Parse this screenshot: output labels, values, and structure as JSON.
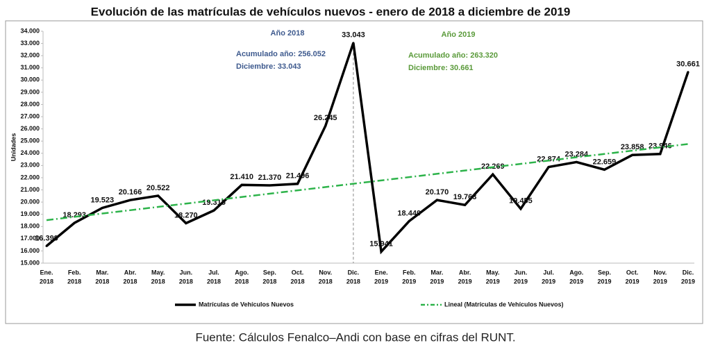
{
  "chart_data": {
    "type": "line",
    "title": "Evolución de las matrículas de vehículos nuevos - enero de 2018 a diciembre de 2019",
    "y_label": "Unidades",
    "source": "Fuente: Cálculos Fenalco–Andi con base en cifras del RUNT.",
    "categories": [
      [
        "Ene.",
        "2018"
      ],
      [
        "Feb.",
        "2018"
      ],
      [
        "Mar.",
        "2018"
      ],
      [
        "Abr.",
        "2018"
      ],
      [
        "May.",
        "2018"
      ],
      [
        "Jun.",
        "2018"
      ],
      [
        "Jul.",
        "2018"
      ],
      [
        "Ago.",
        "2018"
      ],
      [
        "Sep.",
        "2018"
      ],
      [
        "Oct.",
        "2018"
      ],
      [
        "Nov.",
        "2018"
      ],
      [
        "Dic.",
        "2018"
      ],
      [
        "Ene.",
        "2019"
      ],
      [
        "Feb.",
        "2019"
      ],
      [
        "Mar.",
        "2019"
      ],
      [
        "Abr.",
        "2019"
      ],
      [
        "May.",
        "2019"
      ],
      [
        "Jun.",
        "2019"
      ],
      [
        "Jul.",
        "2019"
      ],
      [
        "Ago.",
        "2019"
      ],
      [
        "Sep.",
        "2019"
      ],
      [
        "Oct.",
        "2019"
      ],
      [
        "Nov.",
        "2019"
      ],
      [
        "Dic.",
        "2019"
      ]
    ],
    "series": [
      {
        "name": "Matrículas de Vehículos Nuevos",
        "color": "#000000",
        "values": [
          16399,
          18293,
          19523,
          20166,
          20522,
          18270,
          19315,
          21410,
          21370,
          21496,
          26245,
          33043,
          15941,
          18440,
          20170,
          19763,
          22269,
          19455,
          22874,
          23284,
          22659,
          23858,
          23946,
          30661
        ],
        "value_labels": [
          "16.399",
          "18.293",
          "19.523",
          "20.166",
          "20.522",
          "18.270",
          "19.315",
          "21.410",
          "21.370",
          "21.496",
          "26.245",
          "33.043",
          "15.941",
          "18.440",
          "20.170",
          "19.763",
          "22.269",
          "19.455",
          "22.874",
          "23.284",
          "22.659",
          "23.858",
          "23.946",
          "30.661"
        ]
      },
      {
        "name": "Lineal (Matrículas de Vehículos Nuevos)",
        "color": "#2db34a",
        "trend": "linear",
        "of_series": 0
      }
    ],
    "annotations": [
      {
        "title": "Año 2018",
        "lines": [
          "Acumulado año:  256.052",
          "Diciembre: 33.043"
        ],
        "color": "#3e5a8e"
      },
      {
        "title": "Año 2019",
        "lines": [
          "Acumulado año:  263.320",
          "Diciembre:  30.661"
        ],
        "color": "#5a9a3a"
      }
    ],
    "ylim": [
      15000,
      34000
    ],
    "yticks": [
      {
        "value": 15000,
        "label": "15.000"
      },
      {
        "value": 16000,
        "label": "16.000"
      },
      {
        "value": 17000,
        "label": "17.000"
      },
      {
        "value": 18000,
        "label": "18.000"
      },
      {
        "value": 19000,
        "label": "19.000"
      },
      {
        "value": 20000,
        "label": "20.000"
      },
      {
        "value": 21000,
        "label": "21.000"
      },
      {
        "value": 22000,
        "label": "22.000"
      },
      {
        "value": 23000,
        "label": "23.000"
      },
      {
        "value": 24000,
        "label": "24.000"
      },
      {
        "value": 25000,
        "label": "25.000"
      },
      {
        "value": 26000,
        "label": "26.000"
      },
      {
        "value": 27000,
        "label": "27.000"
      },
      {
        "value": 28000,
        "label": "28.000"
      },
      {
        "value": 29000,
        "label": "29.000"
      },
      {
        "value": 30000,
        "label": "30.000"
      },
      {
        "value": 31000,
        "label": "31.000"
      },
      {
        "value": 32000,
        "label": "32.000"
      },
      {
        "value": 33000,
        "label": "33.000"
      },
      {
        "value": 34000,
        "label": "34.000"
      }
    ],
    "grid": false,
    "legend": "bottom"
  }
}
